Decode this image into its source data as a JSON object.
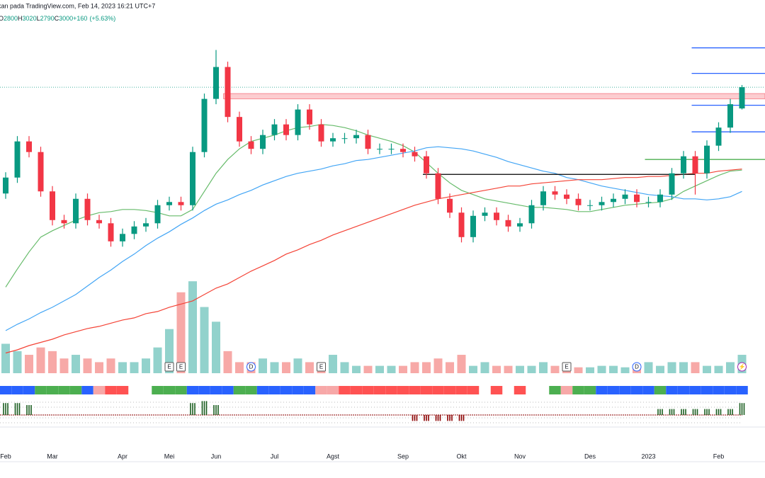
{
  "chart_data": {
    "type": "candlestick",
    "source": "kan pada TradingView.com, Feb 14, 2023 16:21 UTC+7",
    "ohlc_prefixes": [
      "O",
      "H",
      "L",
      "C"
    ],
    "change": {
      "value": 160,
      "label": "+160"
    },
    "change_pct": {
      "value": 5.63,
      "label": "(+5.63%)"
    },
    "categories": [
      "Feb",
      null,
      null,
      null,
      "Mar",
      null,
      null,
      null,
      null,
      null,
      "Apr",
      null,
      null,
      null,
      "Mei",
      null,
      null,
      null,
      "Jun",
      null,
      null,
      null,
      null,
      "Jul",
      null,
      null,
      null,
      null,
      "Agst",
      null,
      null,
      null,
      null,
      null,
      "Sep",
      null,
      null,
      null,
      null,
      "Okt",
      null,
      null,
      null,
      null,
      "Nov",
      null,
      null,
      null,
      null,
      null,
      "Des",
      null,
      null,
      null,
      null,
      "2023",
      null,
      null,
      null,
      null,
      null,
      "Feb",
      null,
      null
    ],
    "open": [
      2000,
      2150,
      2490,
      2390,
      2020,
      1750,
      1720,
      1950,
      1750,
      1720,
      1550,
      1620,
      1690,
      1720,
      1890,
      1920,
      1890,
      2390,
      2890,
      3190,
      2720,
      2490,
      2420,
      2550,
      2650,
      2550,
      2790,
      2650,
      2490,
      2520,
      2520,
      2550,
      2420,
      2420,
      2420,
      2390,
      2350,
      2190,
      1950,
      1820,
      1590,
      1790,
      1820,
      1750,
      1690,
      1720,
      1890,
      2020,
      1990,
      1950,
      1890,
      1890,
      1920,
      1950,
      1990,
      1920,
      1920,
      1990,
      2190,
      2350,
      2190,
      2450,
      2620,
      2800
    ],
    "high": [
      2200,
      2540,
      2540,
      2440,
      2070,
      1800,
      2000,
      2000,
      1800,
      1770,
      1670,
      1740,
      1770,
      1940,
      1970,
      1970,
      2440,
      2940,
      3350,
      3240,
      2770,
      2540,
      2600,
      2700,
      2700,
      2840,
      2840,
      2700,
      2570,
      2570,
      2600,
      2600,
      2470,
      2470,
      2470,
      2440,
      2400,
      2240,
      2000,
      1870,
      1840,
      1870,
      1870,
      1800,
      1770,
      1940,
      2070,
      2070,
      2040,
      2000,
      1940,
      1970,
      2000,
      2040,
      2040,
      1970,
      2040,
      2240,
      2400,
      2400,
      2500,
      2670,
      2890,
      3020
    ],
    "low": [
      1950,
      2100,
      2340,
      1970,
      1700,
      1670,
      1670,
      1700,
      1670,
      1500,
      1500,
      1570,
      1640,
      1670,
      1840,
      1840,
      1840,
      2340,
      2840,
      2670,
      2440,
      2370,
      2370,
      2500,
      2500,
      2500,
      2600,
      2440,
      2440,
      2470,
      2470,
      2370,
      2370,
      2370,
      2340,
      2300,
      2140,
      1900,
      1770,
      1540,
      1540,
      1740,
      1700,
      1640,
      1640,
      1670,
      1840,
      1940,
      1900,
      1840,
      1840,
      1840,
      1870,
      1900,
      1870,
      1870,
      1870,
      1940,
      2140,
      1990,
      2140,
      2400,
      2570,
      2790
    ],
    "close": [
      2150,
      2490,
      2390,
      2020,
      1750,
      1720,
      1950,
      1750,
      1720,
      1550,
      1620,
      1690,
      1720,
      1890,
      1920,
      1890,
      2390,
      2890,
      3190,
      2720,
      2490,
      2420,
      2550,
      2650,
      2550,
      2790,
      2650,
      2490,
      2520,
      2520,
      2550,
      2420,
      2420,
      2420,
      2390,
      2350,
      2190,
      1950,
      1820,
      1590,
      1790,
      1820,
      1750,
      1690,
      1720,
      1890,
      2020,
      1990,
      1950,
      1890,
      1890,
      1920,
      1950,
      1990,
      1920,
      1920,
      1990,
      2190,
      2350,
      2190,
      2450,
      2620,
      2840,
      3000
    ],
    "volume": [
      40,
      30,
      25,
      35,
      30,
      20,
      25,
      20,
      15,
      20,
      15,
      15,
      20,
      35,
      60,
      110,
      125,
      90,
      70,
      30,
      15,
      15,
      20,
      15,
      15,
      20,
      15,
      10,
      25,
      15,
      10,
      10,
      10,
      10,
      10,
      15,
      15,
      20,
      15,
      25,
      10,
      15,
      10,
      10,
      10,
      10,
      15,
      10,
      10,
      8,
      8,
      10,
      10,
      8,
      10,
      15,
      10,
      15,
      15,
      15,
      10,
      10,
      15,
      25
    ],
    "up_color": "#089981",
    "down_color": "#f23645",
    "volume_up_color": "#92d2cc",
    "volume_down_color": "#f7a9a7",
    "ylim": [
      290,
      3820
    ],
    "y2lim": [
      0,
      130
    ],
    "moving_averages": [
      {
        "color": "#66bb6a",
        "values": [
          1120,
          1290,
          1450,
          1590,
          1650,
          1700,
          1750,
          1790,
          1820,
          1830,
          1850,
          1850,
          1840,
          1820,
          1790,
          1790,
          1850,
          2020,
          2190,
          2320,
          2420,
          2490,
          2520,
          2550,
          2590,
          2620,
          2630,
          2650,
          2640,
          2620,
          2590,
          2550,
          2520,
          2490,
          2450,
          2390,
          2290,
          2190,
          2100,
          2030,
          1990,
          1950,
          1930,
          1910,
          1890,
          1870,
          1870,
          1860,
          1850,
          1830,
          1830,
          1850,
          1870,
          1890,
          1900,
          1910,
          1920,
          1950,
          2020,
          2070,
          2120,
          2170,
          2210,
          2220
        ]
      },
      {
        "color": "#42a5f5",
        "values": [
          710,
          770,
          820,
          880,
          930,
          990,
          1050,
          1130,
          1210,
          1280,
          1360,
          1430,
          1510,
          1580,
          1640,
          1710,
          1770,
          1840,
          1900,
          1940,
          1990,
          2030,
          2080,
          2120,
          2160,
          2190,
          2210,
          2230,
          2260,
          2280,
          2310,
          2320,
          2340,
          2360,
          2380,
          2400,
          2430,
          2440,
          2430,
          2420,
          2400,
          2370,
          2340,
          2300,
          2270,
          2240,
          2210,
          2190,
          2150,
          2130,
          2100,
          2070,
          2050,
          2030,
          2010,
          1990,
          1980,
          1970,
          1950,
          1950,
          1940,
          1950,
          1970,
          2020
        ]
      },
      {
        "color": "#f44336",
        "values": [
          500,
          530,
          570,
          600,
          630,
          670,
          700,
          730,
          750,
          780,
          810,
          830,
          870,
          890,
          930,
          960,
          990,
          1050,
          1110,
          1150,
          1210,
          1270,
          1320,
          1370,
          1430,
          1470,
          1520,
          1560,
          1610,
          1650,
          1690,
          1730,
          1770,
          1810,
          1850,
          1890,
          1920,
          1950,
          1970,
          1990,
          2010,
          2030,
          2050,
          2070,
          2070,
          2090,
          2100,
          2110,
          2120,
          2130,
          2130,
          2130,
          2140,
          2150,
          2150,
          2160,
          2160,
          2170,
          2180,
          2190,
          2190,
          2210,
          2220,
          2230
        ]
      }
    ],
    "levels": [
      {
        "value": 3370,
        "color": "#2962ff",
        "from": 59
      },
      {
        "value": 3130,
        "color": "#2962ff",
        "from": 59
      },
      {
        "value": 2830,
        "color": "#2962ff",
        "from": 59
      },
      {
        "value": 2580,
        "color": "#2962ff",
        "from": 59
      },
      {
        "value": 2320,
        "color": "#4caf50",
        "from": 55
      },
      {
        "value": 2180,
        "color": "#000000",
        "from": 36,
        "to": 59
      }
    ],
    "zone": {
      "low": 2890,
      "high": 2940,
      "from": 19,
      "color": "#f23645"
    },
    "events": [
      {
        "label": "E",
        "index": 14
      },
      {
        "label": "E",
        "index": 15
      },
      {
        "label": "D",
        "index": 21
      },
      {
        "label": "E",
        "index": 27
      },
      {
        "label": "E",
        "index": 48
      },
      {
        "label": "D",
        "index": 54
      },
      {
        "label": "⚡",
        "index": 63
      }
    ],
    "trend_strip": [
      "#2962ff",
      "#2962ff",
      "#2962ff",
      "#4caf50",
      "#4caf50",
      "#4caf50",
      "#4caf50",
      "#2962ff",
      "#f7a8a8",
      "#ff5252",
      "#ff5252",
      null,
      null,
      "#4caf50",
      "#4caf50",
      "#4caf50",
      "#2962ff",
      "#2962ff",
      "#2962ff",
      "#2962ff",
      "#4caf50",
      "#4caf50",
      "#2962ff",
      "#2962ff",
      "#2962ff",
      "#2962ff",
      "#2962ff",
      "#f7a8a8",
      "#f7a8a8",
      "#ff5252",
      "#ff5252",
      "#ff5252",
      "#ff5252",
      "#ff5252",
      "#ff5252",
      "#ff5252",
      "#ff5252",
      "#ff5252",
      "#ff5252",
      "#ff5252",
      "#ff5252",
      null,
      "#ff5252",
      null,
      "#ff5252",
      null,
      null,
      "#4caf50",
      "#f7a8a8",
      "#4caf50",
      "#4caf50",
      "#2962ff",
      "#2962ff",
      "#2962ff",
      "#2962ff",
      "#2962ff",
      "#4caf50",
      "#2962ff",
      "#2962ff",
      "#2962ff",
      "#2962ff",
      "#2962ff",
      "#2962ff",
      "#2962ff"
    ],
    "signal": [
      12,
      12,
      10,
      0,
      0,
      0,
      0,
      0,
      0,
      0,
      0,
      0,
      0,
      0,
      0,
      0,
      12,
      14,
      10,
      0,
      0,
      0,
      0,
      0,
      0,
      0,
      0,
      0,
      0,
      0,
      0,
      0,
      0,
      0,
      0,
      -6,
      -6,
      -6,
      -6,
      -6,
      0,
      0,
      0,
      0,
      0,
      0,
      0,
      0,
      0,
      0,
      0,
      0,
      0,
      0,
      0,
      0,
      6,
      6,
      6,
      6,
      6,
      6,
      6,
      12
    ],
    "signal_lim": [
      -10,
      15
    ],
    "signal_up_color": "#1b5e20",
    "signal_down_color": "#8b0000"
  }
}
